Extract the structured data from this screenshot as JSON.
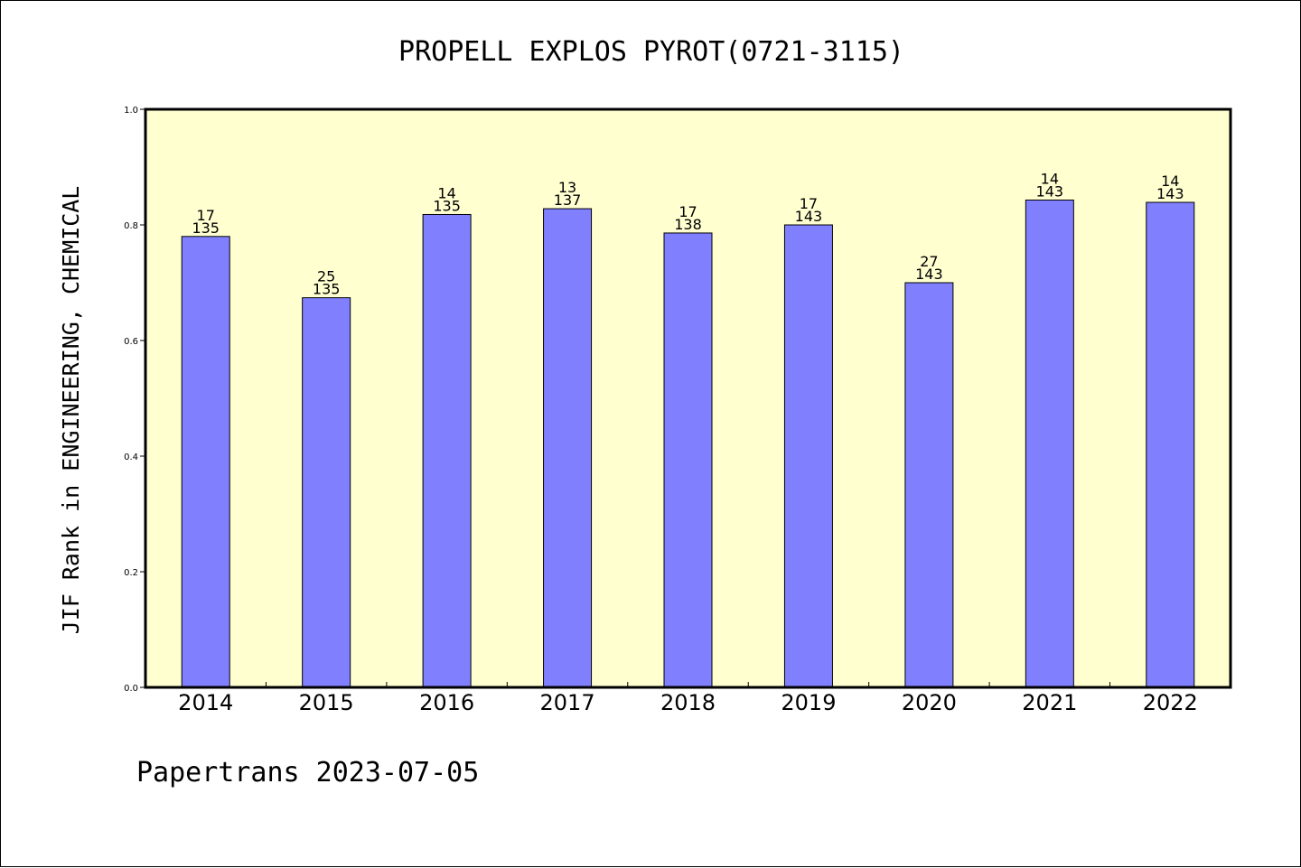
{
  "chart_data": {
    "type": "bar",
    "title": "PROPELL EXPLOS PYROT(0721-3115)",
    "xlabel": "",
    "ylabel": "JIF Rank in ENGINEERING, CHEMICAL",
    "ylim": [
      0,
      1.0
    ],
    "yticks": [
      "0.0",
      "0.2",
      "0.4",
      "0.6",
      "0.8",
      "1.0"
    ],
    "categories": [
      "2014",
      "2015",
      "2016",
      "2017",
      "2018",
      "2019",
      "2020",
      "2021",
      "2022"
    ],
    "values": [
      0.78,
      0.674,
      0.818,
      0.828,
      0.786,
      0.8,
      0.7,
      0.843,
      0.839
    ],
    "rank": [
      "17",
      "25",
      "14",
      "13",
      "17",
      "17",
      "27",
      "14",
      "14"
    ],
    "total": [
      "135",
      "135",
      "135",
      "137",
      "138",
      "143",
      "143",
      "143",
      "143"
    ],
    "grid": false,
    "colors": {
      "plot_background": "#FFFFD0",
      "bar_fill": "#8080FF",
      "bar_stroke": "#000000"
    }
  },
  "footer": "Papertrans 2023-07-05"
}
